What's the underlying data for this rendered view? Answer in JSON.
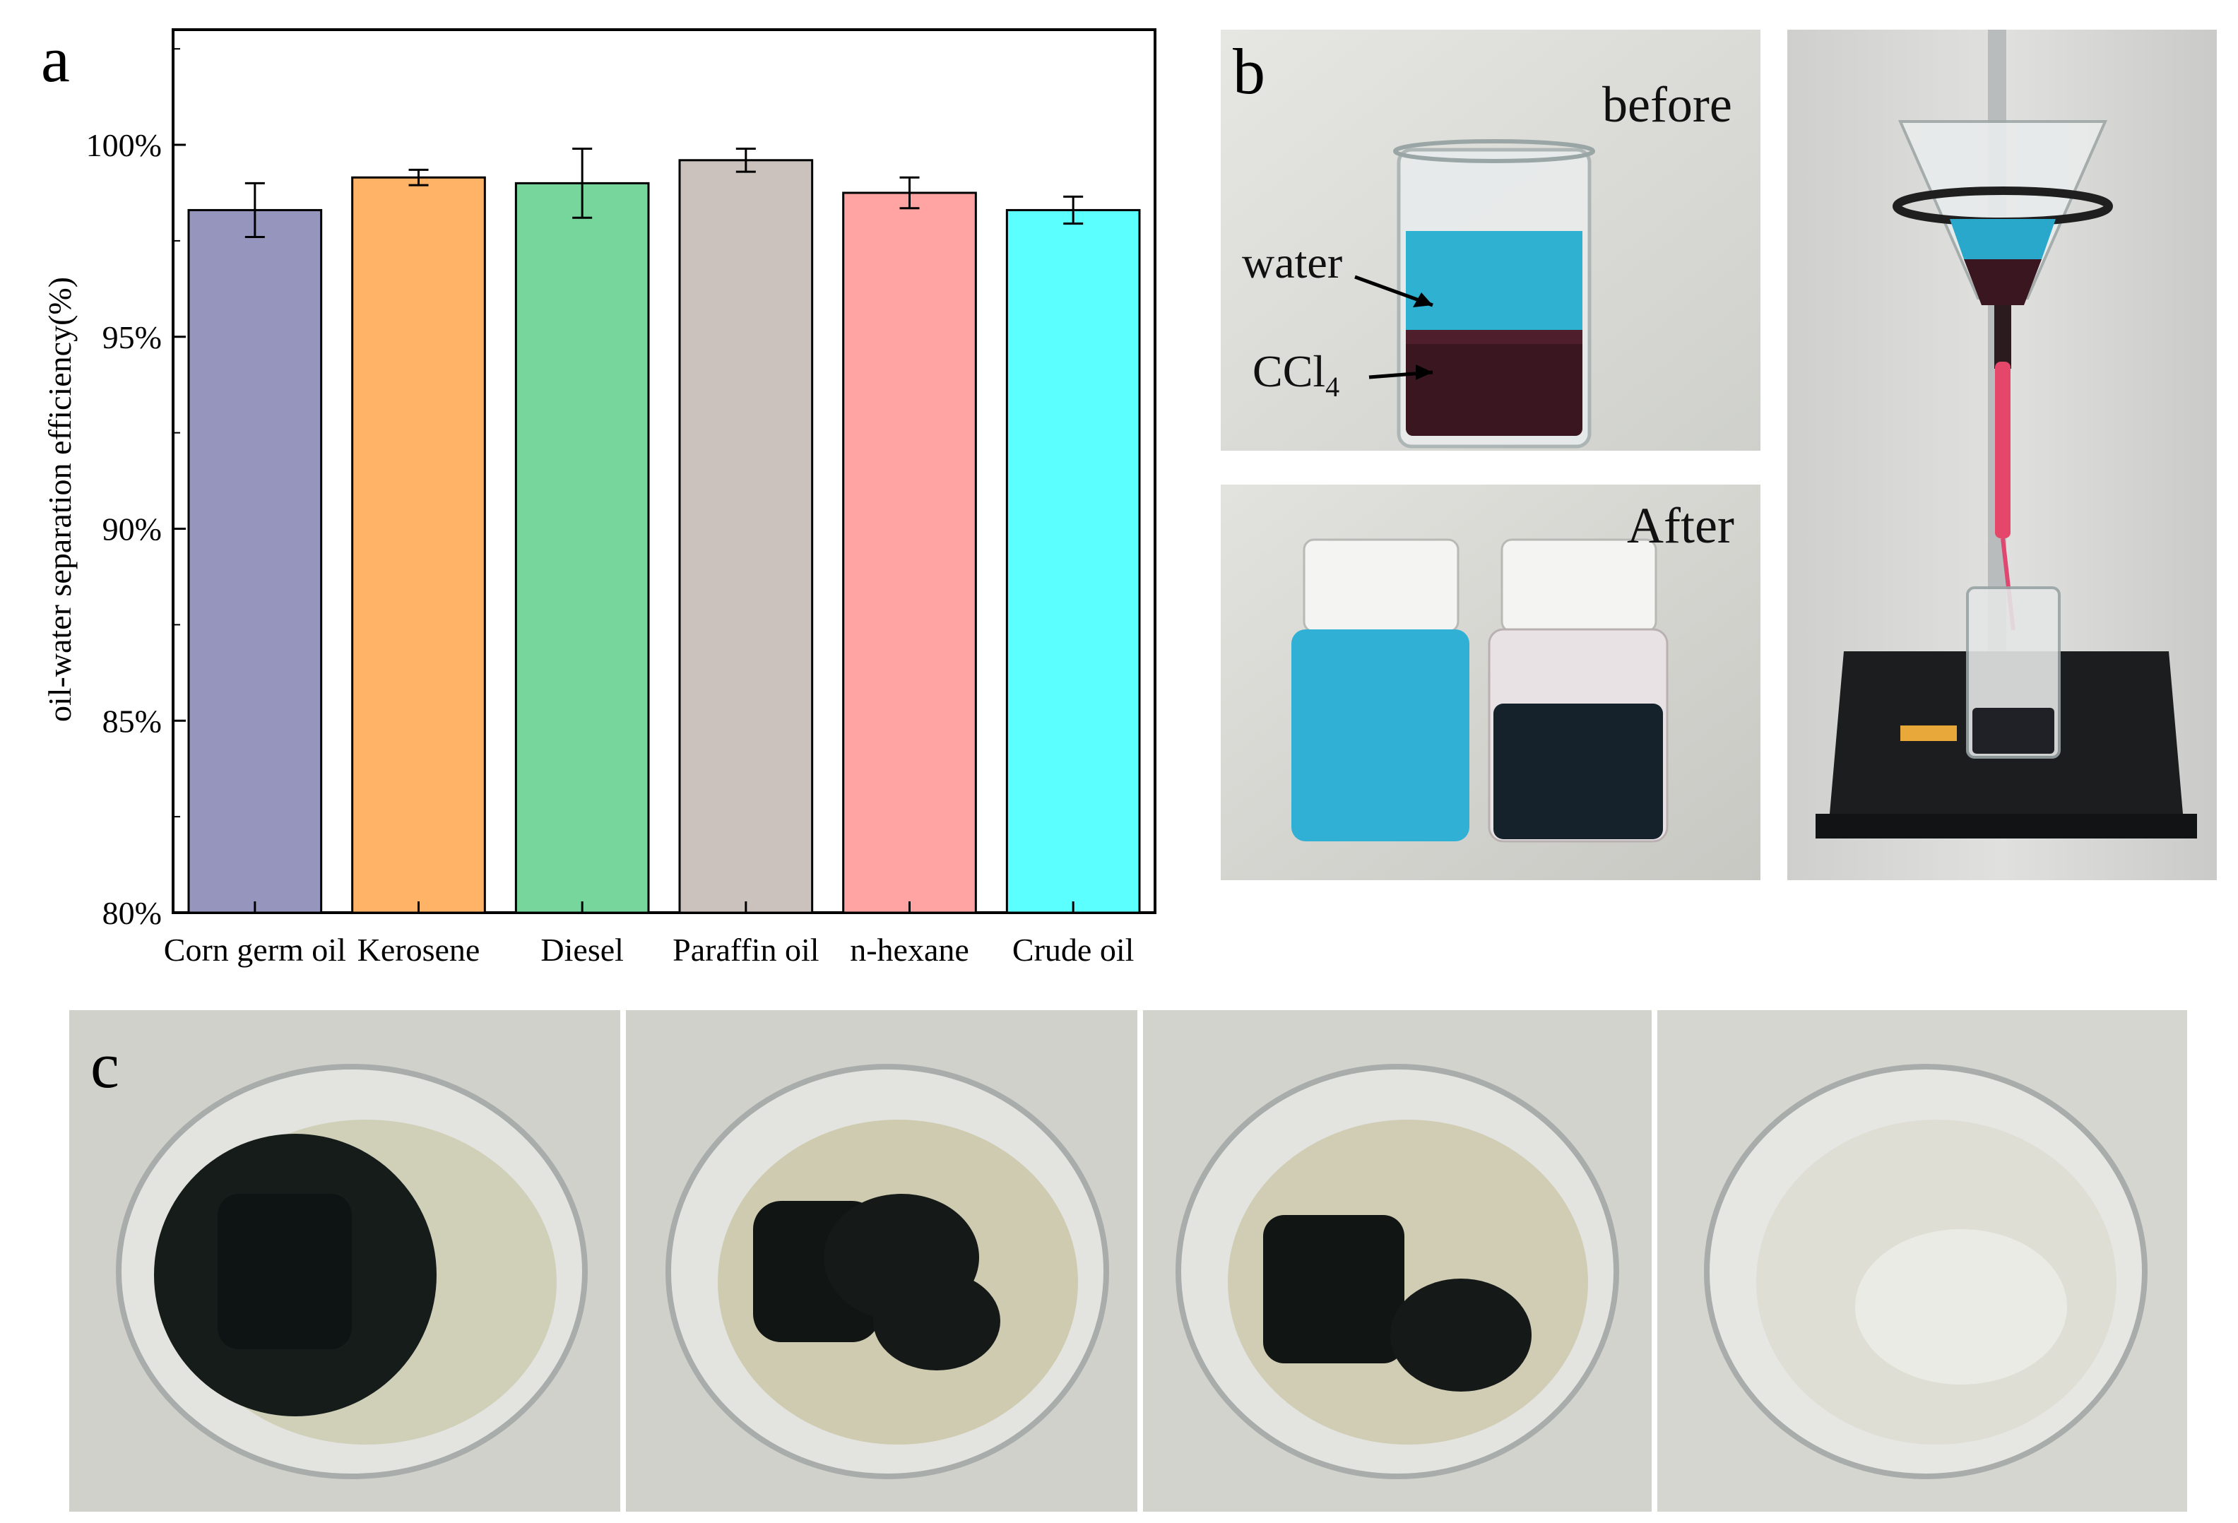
{
  "panels": {
    "a": "a",
    "b": "b",
    "c": "c"
  },
  "chart_data": {
    "type": "bar",
    "categories": [
      "Corn germ oil",
      "Kerosene",
      "Diesel",
      "Paraffin oil",
      "n-hexane",
      "Crude oil"
    ],
    "values": [
      98.3,
      99.15,
      99.0,
      99.6,
      98.75,
      98.3
    ],
    "errors": [
      0.7,
      0.2,
      0.9,
      0.3,
      0.4,
      0.35
    ],
    "colors": [
      "#9595bd",
      "#ffb366",
      "#76d69c",
      "#ccc2bd",
      "#ffa3a3",
      "#5cffff"
    ],
    "ylabel": "oil-water separation efficiency(%)",
    "ylim": [
      80,
      103
    ],
    "yticks": [
      "80%",
      "85%",
      "90%",
      "95%",
      "100%"
    ],
    "ytick_values": [
      80,
      85,
      90,
      95,
      100
    ]
  },
  "photos": {
    "before": {
      "label": "before",
      "water_label": "water",
      "ccl4_label": "CCl",
      "ccl4_sub": "4"
    },
    "after": {
      "label": "After"
    }
  }
}
